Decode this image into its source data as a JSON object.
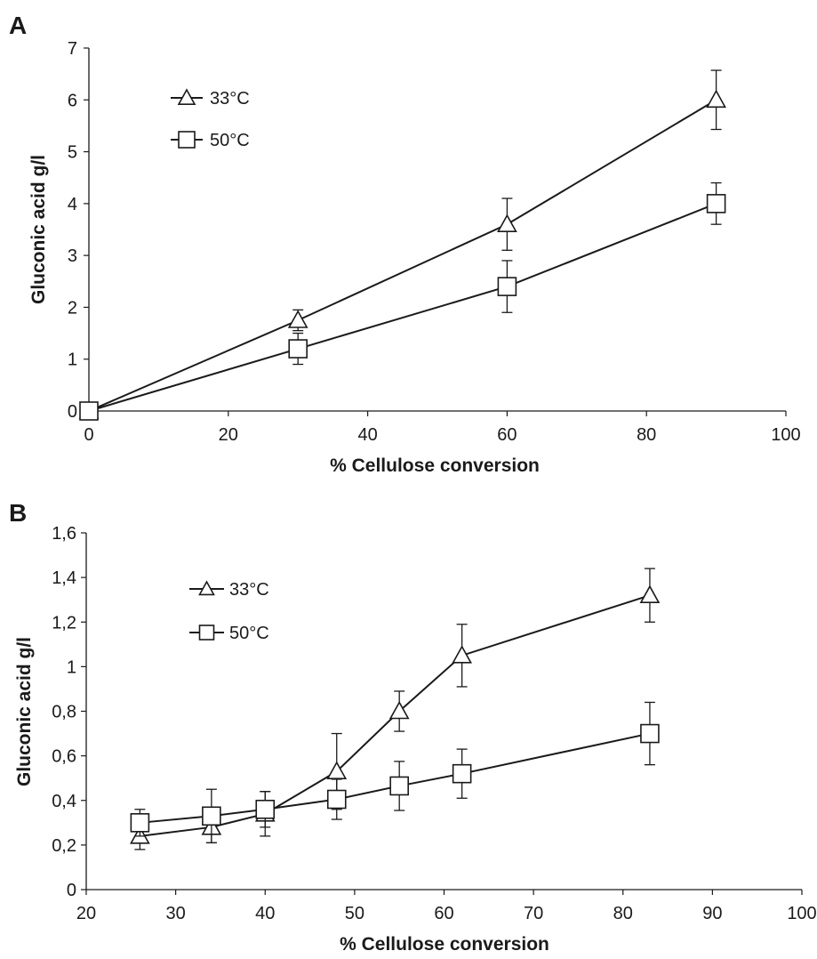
{
  "chart_data": [
    {
      "type": "line",
      "panel": "A",
      "xlabel": "% Cellulose conversion",
      "ylabel": "Gluconic acid  g/l",
      "xlim": [
        0,
        100
      ],
      "ylim": [
        0,
        7
      ],
      "xticks": [
        0,
        20,
        40,
        60,
        80,
        100
      ],
      "yticks": [
        0,
        1,
        2,
        3,
        4,
        5,
        6,
        7
      ],
      "xtick_labels": [
        "0",
        "20",
        "40",
        "60",
        "80",
        "100"
      ],
      "ytick_labels": [
        "0",
        "1",
        "2",
        "3",
        "4",
        "5",
        "6",
        "7"
      ],
      "grid": false,
      "legend_position": "top-left",
      "series": [
        {
          "name": "33°C",
          "marker": "triangle",
          "x": [
            0,
            30,
            60,
            90
          ],
          "y": [
            0,
            1.75,
            3.6,
            6.0
          ],
          "error": [
            0,
            0.2,
            0.5,
            0.57
          ]
        },
        {
          "name": "50°C",
          "marker": "square",
          "x": [
            0,
            30,
            60,
            90
          ],
          "y": [
            0,
            1.2,
            2.4,
            4.0
          ],
          "error": [
            0,
            0.3,
            0.5,
            0.4
          ]
        }
      ]
    },
    {
      "type": "line",
      "panel": "B",
      "xlabel": "% Cellulose conversion",
      "ylabel": "Gluconic acid g/l",
      "xlim": [
        20,
        100
      ],
      "ylim": [
        0,
        1.6
      ],
      "xticks": [
        20,
        30,
        40,
        50,
        60,
        70,
        80,
        90,
        100
      ],
      "yticks": [
        0,
        0.2,
        0.4,
        0.6,
        0.8,
        1.0,
        1.2,
        1.4,
        1.6
      ],
      "xtick_labels": [
        "20",
        "30",
        "40",
        "50",
        "60",
        "70",
        "80",
        "90",
        "100"
      ],
      "ytick_labels": [
        "0",
        "0,2",
        "0,4",
        "0,6",
        "0,8",
        "1",
        "1,2",
        "1,4",
        "1,6"
      ],
      "grid": false,
      "legend_position": "top-left",
      "series": [
        {
          "name": "33°C",
          "marker": "triangle",
          "x": [
            26,
            34,
            40,
            48,
            55,
            62,
            83
          ],
          "y": [
            0.24,
            0.28,
            0.34,
            0.53,
            0.8,
            1.05,
            1.32
          ],
          "error": [
            0.06,
            0.07,
            0.1,
            0.17,
            0.09,
            0.14,
            0.12
          ]
        },
        {
          "name": "50°C",
          "marker": "square",
          "x": [
            26,
            34,
            40,
            48,
            55,
            62,
            83
          ],
          "y": [
            0.3,
            0.33,
            0.36,
            0.405,
            0.465,
            0.52,
            0.7
          ],
          "error": [
            0.06,
            0.12,
            0.08,
            0.09,
            0.11,
            0.11,
            0.14
          ]
        }
      ]
    }
  ]
}
